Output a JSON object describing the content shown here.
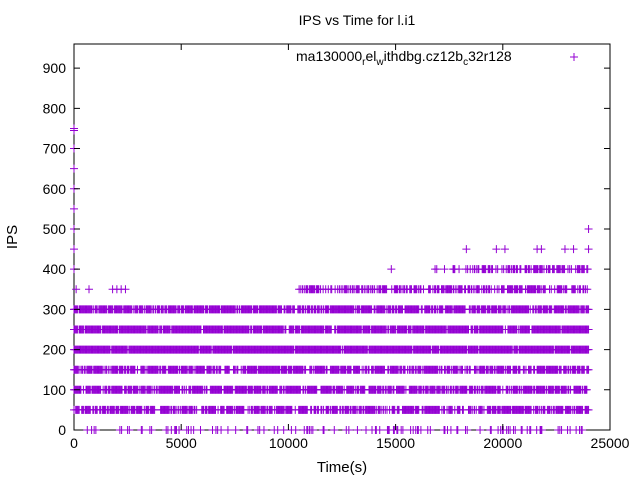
{
  "chart_data": {
    "type": "scatter",
    "title": "IPS vs Time for l.i1",
    "xlabel": "Time(s)",
    "ylabel": "IPS",
    "xlim": [
      0,
      25000
    ],
    "ylim": [
      0,
      960
    ],
    "xticks": [
      0,
      5000,
      10000,
      15000,
      20000,
      25000
    ],
    "yticks": [
      0,
      100,
      200,
      300,
      400,
      500,
      600,
      700,
      800,
      900
    ],
    "grid": false,
    "legend": {
      "position": "top-right",
      "label_parts": [
        "ma130000",
        "r",
        "el",
        "w",
        "ithdbg.cz12b",
        "c",
        "32r128"
      ]
    },
    "color": "#9400d3",
    "marker": "plus",
    "series": [
      {
        "name": "ma130000_rel_withdbg.cz12b_c32r128",
        "dense_bands": [
          {
            "y": 50,
            "x_range": [
              0,
              24000
            ],
            "density": 0.75
          },
          {
            "y": 100,
            "x_range": [
              0,
              24000
            ],
            "density": 0.8
          },
          {
            "y": 150,
            "x_range": [
              0,
              24000
            ],
            "density": 0.8
          },
          {
            "y": 200,
            "x_range": [
              0,
              24000
            ],
            "density": 0.97
          },
          {
            "y": 250,
            "x_range": [
              0,
              24000
            ],
            "density": 0.93
          },
          {
            "y": 300,
            "x_range": [
              0,
              24000
            ],
            "density": 0.85
          },
          {
            "y": 350,
            "x_range": [
              10500,
              24000
            ],
            "density": 0.6
          },
          {
            "y": 400,
            "x_range": [
              16000,
              24000
            ],
            "density": 0.5
          },
          {
            "y": 0,
            "x_range": [
              500,
              24000
            ],
            "density": 0.2
          }
        ],
        "points": [
          [
            0,
            750
          ],
          [
            0,
            745
          ],
          [
            0,
            700
          ],
          [
            0,
            650
          ],
          [
            0,
            600
          ],
          [
            0,
            550
          ],
          [
            0,
            500
          ],
          [
            0,
            450
          ],
          [
            0,
            400
          ],
          [
            0,
            300
          ],
          [
            100,
            350
          ],
          [
            700,
            350
          ],
          [
            1800,
            350
          ],
          [
            2000,
            350
          ],
          [
            2200,
            350
          ],
          [
            2400,
            350
          ],
          [
            14800,
            400
          ],
          [
            18300,
            450
          ],
          [
            19700,
            450
          ],
          [
            20100,
            450
          ],
          [
            21600,
            450
          ],
          [
            21800,
            450
          ],
          [
            22900,
            450
          ],
          [
            23300,
            450
          ],
          [
            24000,
            450
          ],
          [
            24000,
            500
          ]
        ]
      }
    ]
  }
}
